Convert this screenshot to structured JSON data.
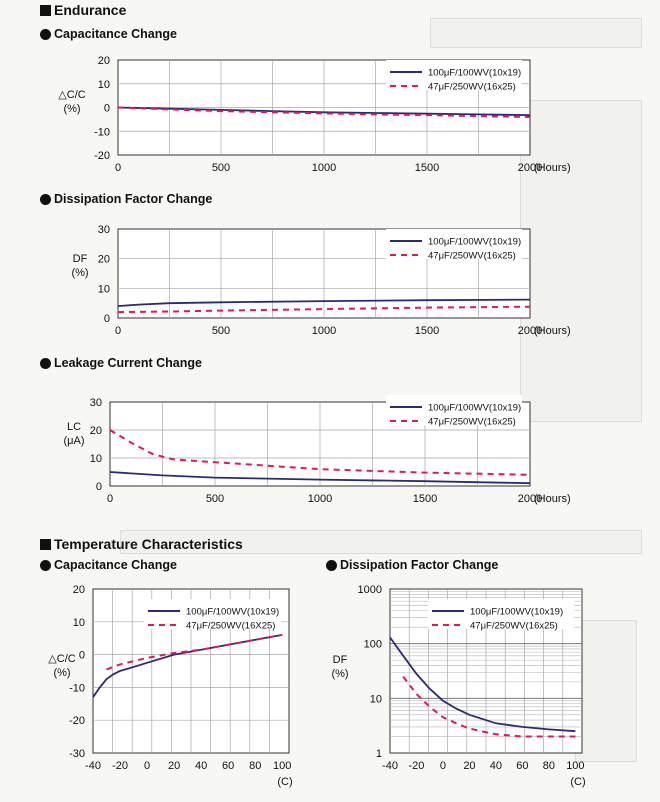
{
  "sections": {
    "endurance": "Endurance",
    "temperature": "Temperature Characteristics"
  },
  "chart_data": [
    {
      "id": "end-cap",
      "type": "line",
      "title": "Capacitance Change",
      "ylabel": "△C/C\n(%)",
      "x_unit_label": "(Hours)",
      "x_ticks": [
        0,
        500,
        1000,
        1500,
        2000
      ],
      "y_ticks": [
        20,
        10,
        0,
        -10,
        -20
      ],
      "xlim": [
        0,
        2000
      ],
      "ylim": [
        -20,
        20
      ],
      "grid": true,
      "legend_position": "top-right",
      "series": [
        {
          "name": "100μF/100WV(10x19)",
          "style": "solid",
          "color": "#2a2a7a",
          "x": [
            0,
            250,
            500,
            750,
            1000,
            1250,
            1500,
            1750,
            2000
          ],
          "y": [
            0,
            -0.5,
            -1,
            -1.5,
            -2,
            -2.3,
            -2.6,
            -2.9,
            -3.2
          ]
        },
        {
          "name": "47μF/250WV(16x25)",
          "style": "dashed",
          "color": "#e0185f",
          "x": [
            0,
            250,
            500,
            750,
            1000,
            1250,
            1500,
            1750,
            2000
          ],
          "y": [
            0,
            -0.8,
            -1.5,
            -2,
            -2.5,
            -2.9,
            -3.2,
            -3.6,
            -4
          ]
        }
      ]
    },
    {
      "id": "end-df",
      "type": "line",
      "title": "Dissipation Factor Change",
      "ylabel": "DF\n(%)",
      "x_unit_label": "(Hours)",
      "x_ticks": [
        0,
        500,
        1000,
        1500,
        2000
      ],
      "y_ticks": [
        30,
        20,
        10,
        0
      ],
      "xlim": [
        0,
        2000
      ],
      "ylim": [
        0,
        30
      ],
      "grid": true,
      "legend_position": "top-right",
      "series": [
        {
          "name": "100μF/100WV(10x19)",
          "style": "solid",
          "color": "#2a2a7a",
          "x": [
            0,
            100,
            250,
            500,
            1000,
            1500,
            2000
          ],
          "y": [
            4,
            4.5,
            5,
            5.3,
            5.7,
            6,
            6.2
          ]
        },
        {
          "name": "47μF/250WV(16x25)",
          "style": "dashed",
          "color": "#e0185f",
          "x": [
            0,
            250,
            500,
            1000,
            1500,
            2000
          ],
          "y": [
            2,
            2.2,
            2.5,
            3,
            3.5,
            3.8
          ]
        }
      ]
    },
    {
      "id": "end-lc",
      "type": "line",
      "title": "Leakage Current Change",
      "ylabel": "LC\n(μA)",
      "x_unit_label": "(Hours)",
      "x_ticks": [
        0,
        500,
        1000,
        1500,
        2000
      ],
      "y_ticks": [
        30,
        20,
        10,
        0
      ],
      "xlim": [
        0,
        2000
      ],
      "ylim": [
        0,
        30
      ],
      "grid": true,
      "legend_position": "top-right",
      "series": [
        {
          "name": "100μF/100WV(10x19)",
          "style": "solid",
          "color": "#2a2a7a",
          "x": [
            0,
            250,
            500,
            1000,
            1500,
            2000
          ],
          "y": [
            5,
            3.8,
            3,
            2.3,
            1.7,
            1
          ]
        },
        {
          "name": "47μF/250WV(16x25)",
          "style": "dashed",
          "color": "#e0185f",
          "x": [
            0,
            100,
            200,
            300,
            500,
            1000,
            1500,
            2000
          ],
          "y": [
            20,
            15.5,
            11.5,
            9.5,
            8.5,
            6,
            4.8,
            4
          ]
        }
      ]
    },
    {
      "id": "temp-cap",
      "type": "line",
      "title": "Capacitance Change",
      "ylabel": "△C/C\n(%)",
      "x_unit_label": "(C)",
      "x_ticks": [
        -40,
        -20,
        0,
        20,
        40,
        60,
        80,
        100
      ],
      "y_ticks": [
        20,
        10,
        0,
        -10,
        -20,
        -30
      ],
      "xlim": [
        -40,
        105
      ],
      "ylim": [
        -30,
        20
      ],
      "grid": true,
      "legend_position": "top-right",
      "series": [
        {
          "name": "100μF/100WV(10x19)",
          "style": "solid",
          "color": "#2a2a7a",
          "x": [
            -40,
            -35,
            -30,
            -25,
            -20,
            0,
            20,
            40,
            60,
            80,
            100
          ],
          "y": [
            -13,
            -10,
            -7.5,
            -6,
            -5,
            -2.5,
            0,
            1.5,
            3,
            4.5,
            6
          ]
        },
        {
          "name": "47μF/250WV(16X25)",
          "style": "dashed",
          "color": "#e0185f",
          "x": [
            -30,
            -20,
            0,
            20,
            40,
            60,
            80,
            100
          ],
          "y": [
            -4.5,
            -3,
            -1,
            0.5,
            1.5,
            3,
            4.5,
            6
          ]
        }
      ]
    },
    {
      "id": "temp-df",
      "type": "line",
      "title": "Dissipation Factor Change",
      "ylabel": "DF\n(%)",
      "x_unit_label": "(C)",
      "x_ticks": [
        -40,
        -20,
        0,
        20,
        40,
        60,
        80,
        100
      ],
      "y_ticks": [
        1000,
        100,
        10,
        1
      ],
      "xlim": [
        -40,
        105
      ],
      "ylim": [
        1,
        1000
      ],
      "yscale": "log",
      "grid": true,
      "legend_position": "top-right",
      "series": [
        {
          "name": "100μF/100WV(10x19)",
          "style": "solid",
          "color": "#2a2a7a",
          "x": [
            -40,
            -30,
            -20,
            -10,
            0,
            10,
            20,
            40,
            60,
            80,
            100
          ],
          "y": [
            130,
            60,
            28,
            15,
            9,
            6.5,
            5,
            3.5,
            3,
            2.7,
            2.5
          ]
        },
        {
          "name": "47μF/250WV(16x25)",
          "style": "dashed",
          "color": "#e0185f",
          "x": [
            -30,
            -20,
            -10,
            0,
            10,
            20,
            40,
            60,
            80,
            100
          ],
          "y": [
            25,
            12,
            7,
            4.5,
            3.5,
            2.8,
            2.2,
            2,
            2,
            2
          ]
        }
      ]
    }
  ]
}
